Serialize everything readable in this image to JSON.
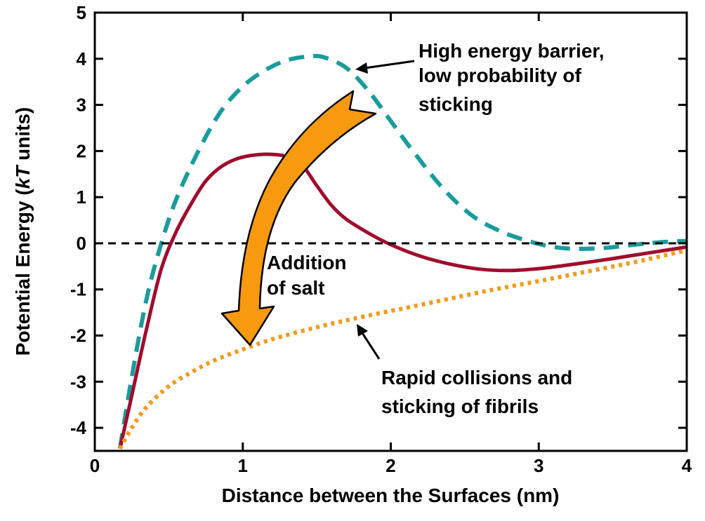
{
  "chart_data": {
    "type": "line",
    "xlabel": "Distance between the Surfaces (nm)",
    "ylabel_prefix": "Potential Energy (",
    "ylabel_italic": "kT",
    "ylabel_suffix": " units)",
    "xlim": [
      0,
      4
    ],
    "ylim": [
      -4.5,
      5
    ],
    "x_ticks": [
      0,
      1,
      2,
      3,
      4
    ],
    "y_ticks": [
      -4,
      -3,
      -2,
      -1,
      0,
      1,
      2,
      3,
      4,
      5
    ],
    "x_tick_labels": [
      "0",
      "1",
      "2",
      "3",
      "4"
    ],
    "y_tick_labels": [
      "-4",
      "-3",
      "-2",
      "-1",
      "0",
      "1",
      "2",
      "3",
      "4",
      "5"
    ],
    "grid": false,
    "zero_line": true,
    "series": [
      {
        "style": "dashed",
        "color": "#1a9c9c",
        "points": [
          [
            0.17,
            -4.45
          ],
          [
            0.25,
            -2.9
          ],
          [
            0.35,
            -1.2
          ],
          [
            0.45,
            0.0
          ],
          [
            0.55,
            0.95
          ],
          [
            0.7,
            2.0
          ],
          [
            0.85,
            2.85
          ],
          [
            1.0,
            3.4
          ],
          [
            1.15,
            3.75
          ],
          [
            1.3,
            3.97
          ],
          [
            1.45,
            4.05
          ],
          [
            1.55,
            4.03
          ],
          [
            1.7,
            3.8
          ],
          [
            1.85,
            3.3
          ],
          [
            2.0,
            2.65
          ],
          [
            2.15,
            2.0
          ],
          [
            2.35,
            1.2
          ],
          [
            2.55,
            0.6
          ],
          [
            2.75,
            0.25
          ],
          [
            2.95,
            0.03
          ],
          [
            3.1,
            -0.08
          ],
          [
            3.25,
            -0.12
          ],
          [
            3.45,
            -0.1
          ],
          [
            3.65,
            -0.03
          ],
          [
            3.85,
            0.03
          ],
          [
            4.0,
            0.05
          ]
        ]
      },
      {
        "style": "solid",
        "color": "#a00d2c",
        "points": [
          [
            0.17,
            -4.45
          ],
          [
            0.25,
            -3.3
          ],
          [
            0.35,
            -1.85
          ],
          [
            0.45,
            -0.55
          ],
          [
            0.55,
            0.25
          ],
          [
            0.65,
            0.85
          ],
          [
            0.75,
            1.35
          ],
          [
            0.85,
            1.65
          ],
          [
            0.95,
            1.82
          ],
          [
            1.05,
            1.9
          ],
          [
            1.17,
            1.93
          ],
          [
            1.3,
            1.88
          ],
          [
            1.4,
            1.7
          ],
          [
            1.5,
            1.25
          ],
          [
            1.6,
            0.82
          ],
          [
            1.7,
            0.52
          ],
          [
            1.85,
            0.22
          ],
          [
            2.0,
            -0.03
          ],
          [
            2.2,
            -0.28
          ],
          [
            2.4,
            -0.45
          ],
          [
            2.6,
            -0.56
          ],
          [
            2.8,
            -0.59
          ],
          [
            3.0,
            -0.55
          ],
          [
            3.2,
            -0.47
          ],
          [
            3.4,
            -0.38
          ],
          [
            3.6,
            -0.28
          ],
          [
            3.8,
            -0.18
          ],
          [
            4.0,
            -0.08
          ]
        ]
      },
      {
        "style": "dotted",
        "color": "#f39a1c",
        "points": [
          [
            0.17,
            -4.45
          ],
          [
            0.25,
            -4.0
          ],
          [
            0.35,
            -3.55
          ],
          [
            0.5,
            -3.1
          ],
          [
            0.65,
            -2.8
          ],
          [
            0.8,
            -2.55
          ],
          [
            1.0,
            -2.3
          ],
          [
            1.2,
            -2.08
          ],
          [
            1.5,
            -1.82
          ],
          [
            1.8,
            -1.6
          ],
          [
            2.1,
            -1.4
          ],
          [
            2.4,
            -1.2
          ],
          [
            2.7,
            -1.0
          ],
          [
            3.0,
            -0.82
          ],
          [
            3.3,
            -0.63
          ],
          [
            3.6,
            -0.44
          ],
          [
            3.8,
            -0.3
          ],
          [
            4.0,
            -0.15
          ]
        ]
      }
    ],
    "annotations": {
      "barrier_lines": [
        "High energy barrier,",
        "low probability of",
        "sticking"
      ],
      "salt_lines": [
        "Addition",
        "of salt"
      ],
      "collision_lines": [
        "Rapid collisions and",
        "sticking of fibrils"
      ]
    },
    "colors": {
      "arrow_fill": "#f89a10",
      "arrow_stroke": "#000000"
    }
  }
}
